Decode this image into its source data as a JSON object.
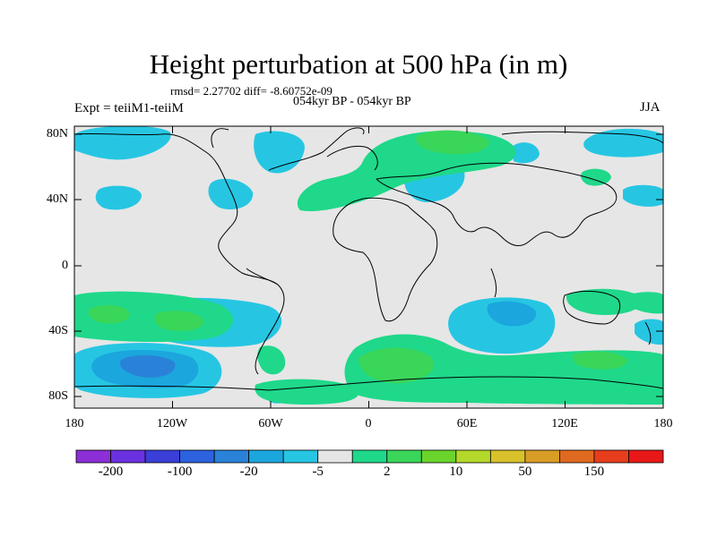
{
  "title": "Height perturbation at 500 hPa (in m)",
  "stats": "rmsd= 2.27702 diff= -8.60752e-09",
  "subtitle": "054kyr BP - 054kyr BP",
  "expt": "Expt = teiiM1-teiiM",
  "season": "JJA",
  "lat_labels": [
    "80N",
    "40N",
    "0",
    "40S",
    "80S"
  ],
  "lon_labels": [
    "180",
    "120W",
    "60W",
    "0",
    "60E",
    "120E",
    "180"
  ],
  "colorbar": {
    "colors": [
      "#8b2fd6",
      "#6a31e0",
      "#3b3fd8",
      "#2c62de",
      "#2a82d8",
      "#1ba6dd",
      "#26c6e3",
      "#e6e6e6",
      "#1fd88a",
      "#39d65a",
      "#6ad42c",
      "#b4d82a",
      "#d8c12a",
      "#d89d25",
      "#e06a1f",
      "#e83d1d",
      "#e81818"
    ],
    "labels": [
      "-200",
      "-100",
      "-20",
      "-5",
      "2",
      "10",
      "50",
      "150"
    ]
  },
  "map": {
    "background_color": "#e6e6e6",
    "content": "geopotential height perturbation contour map, world coastlines"
  }
}
